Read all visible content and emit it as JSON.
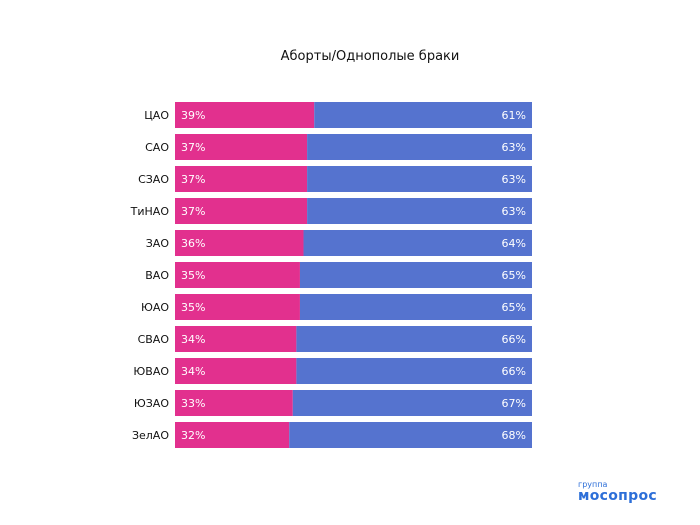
{
  "chart_data": {
    "type": "bar",
    "orientation": "horizontal",
    "stacked": true,
    "percent": true,
    "title": "Аборты/Однополые браки",
    "categories": [
      "ЦАО",
      "САО",
      "СЗАО",
      "ТиНАО",
      "ЗАО",
      "ВАО",
      "ЮАО",
      "СВАО",
      "ЮВАО",
      "ЮЗАО",
      "ЗелАО"
    ],
    "series": [
      {
        "values": [
          39,
          37,
          37,
          37,
          36,
          35,
          35,
          34,
          34,
          33,
          32
        ],
        "color": "#e2308e"
      },
      {
        "values": [
          61,
          63,
          63,
          63,
          64,
          65,
          65,
          66,
          66,
          67,
          68
        ],
        "color": "#5573cf"
      }
    ],
    "label_suffix": "%",
    "xlim": [
      0,
      100
    ],
    "grid": false,
    "legend": "none"
  },
  "logo": {
    "top": "группа",
    "main": "мосопрос"
  }
}
